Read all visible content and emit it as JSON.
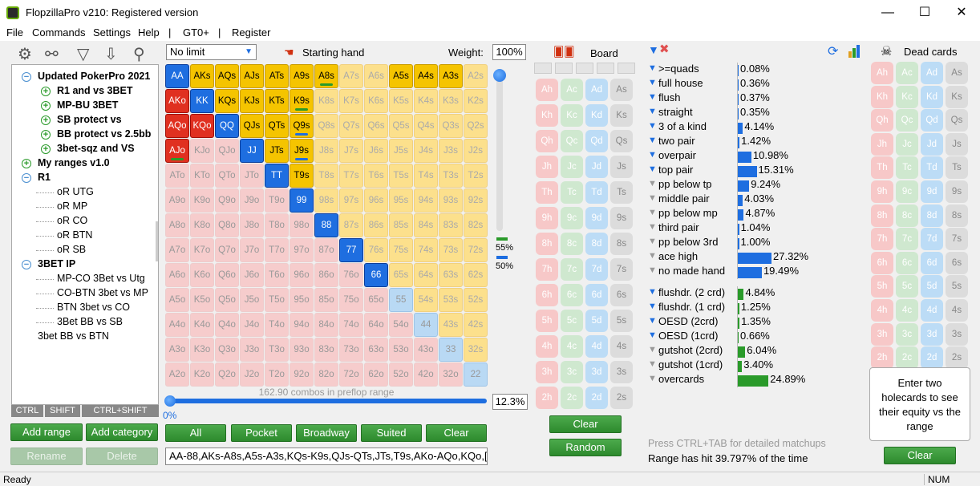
{
  "window": {
    "title": "FlopzillaPro v210: Registered version"
  },
  "menu": [
    "File",
    "Commands",
    "Settings",
    "Help",
    "|",
    "GT0+",
    "|",
    "Register"
  ],
  "tree": [
    {
      "label": "Updated PokerPro 2021",
      "bold": true,
      "toggle": "minus",
      "level": 1
    },
    {
      "label": "R1 and vs 3BET",
      "bold": true,
      "toggle": "plus",
      "level": 2
    },
    {
      "label": "MP-BU 3BET",
      "bold": true,
      "toggle": "plus",
      "level": 2
    },
    {
      "label": "SB protect vs",
      "bold": true,
      "toggle": "plus",
      "level": 2
    },
    {
      "label": "BB protect vs 2.5bb",
      "bold": true,
      "toggle": "plus",
      "level": 2
    },
    {
      "label": "3bet-sqz and VS",
      "bold": true,
      "toggle": "plus",
      "level": 2
    },
    {
      "label": "My ranges v1.0",
      "bold": true,
      "toggle": "plus",
      "level": 1
    },
    {
      "label": "R1",
      "bold": true,
      "toggle": "minus",
      "level": 1
    },
    {
      "label": "oR UTG",
      "bold": false,
      "toggle": "",
      "level": 3
    },
    {
      "label": "oR MP",
      "bold": false,
      "toggle": "",
      "level": 3
    },
    {
      "label": "oR CO",
      "bold": false,
      "toggle": "",
      "level": 3
    },
    {
      "label": "oR BTN",
      "bold": false,
      "toggle": "",
      "level": 3
    },
    {
      "label": "oR SB",
      "bold": false,
      "toggle": "",
      "level": 3
    },
    {
      "label": "3BET IP",
      "bold": true,
      "toggle": "minus",
      "level": 1
    },
    {
      "label": "MP-CO 3Bet vs Utg",
      "bold": false,
      "toggle": "",
      "level": 3
    },
    {
      "label": "CO-BTN 3bet vs MP",
      "bold": false,
      "toggle": "",
      "level": 3
    },
    {
      "label": "BTN 3bet vs CO",
      "bold": false,
      "toggle": "",
      "level": 3
    },
    {
      "label": "3Bet BB vs SB",
      "bold": false,
      "toggle": "",
      "level": 3
    },
    {
      "label": "3bet BB vs BTN",
      "bold": false,
      "toggle": "",
      "level": 0
    }
  ],
  "keys": [
    "CTRL",
    "SHIFT",
    "CTRL+SHIFT"
  ],
  "left_buttons": {
    "add_range": "Add range",
    "add_category": "Add category",
    "rename": "Rename",
    "delete": "Delete"
  },
  "range": {
    "limit_select": "No limit",
    "starting_hand_label": "Starting hand",
    "weight_label": "Weight:",
    "weight_value": "100%",
    "combos_text": "162.90 combos in preflop range",
    "slider_left": "0%",
    "slider_right": "12.3%",
    "vslider_top": "55%",
    "vslider_bottom": "50%",
    "range_text": "AA-88,AKs-A8s,A5s-A3s,KQs-K9s,QJs-QTs,JTs,T9s,AKo-AQo,KQo,[...",
    "buttons": [
      "All",
      "Pocket",
      "Broadway",
      "Suited",
      "Clear"
    ]
  },
  "grid": [
    [
      "AA:blue",
      "AKs:yel",
      "AQs:yel",
      "AJs:yel",
      "ATs:yel",
      "A9s:yel",
      "A8s:yel",
      "A7s:orange",
      "A6s:orange",
      "A5s:yel",
      "A4s:yel",
      "A3s:yel",
      "A2s:orange"
    ],
    [
      "AKo:red",
      "KK:blue",
      "KQs:yel",
      "KJs:yel",
      "KTs:yel",
      "K9s:yel",
      "K8s:orange",
      "K7s:orange",
      "K6s:orange",
      "K5s:orange",
      "K4s:orange",
      "K3s:orange",
      "K2s:orange"
    ],
    [
      "AQo:red",
      "KQo:red",
      "QQ:blue",
      "QJs:yel",
      "QTs:yel",
      "Q9s:yel",
      "Q8s:orange",
      "Q7s:orange",
      "Q6s:orange",
      "Q5s:orange",
      "Q4s:orange",
      "Q3s:orange",
      "Q2s:orange"
    ],
    [
      "AJo:red",
      "KJo:pink",
      "QJo:pink",
      "JJ:blue",
      "JTs:yel",
      "J9s:yel",
      "J8s:orange",
      "J7s:orange",
      "J6s:orange",
      "J5s:orange",
      "J4s:orange",
      "J3s:orange",
      "J2s:orange"
    ],
    [
      "ATo:pink",
      "KTo:pink",
      "QTo:pink",
      "JTo:pink",
      "TT:blue",
      "T9s:yel",
      "T8s:orange",
      "T7s:orange",
      "T6s:orange",
      "T5s:orange",
      "T4s:orange",
      "T3s:orange",
      "T2s:orange"
    ],
    [
      "A9o:pink",
      "K9o:pink",
      "Q9o:pink",
      "J9o:pink",
      "T9o:pink",
      "99:blue",
      "98s:orange",
      "97s:orange",
      "96s:orange",
      "95s:orange",
      "94s:orange",
      "93s:orange",
      "92s:orange"
    ],
    [
      "A8o:pink",
      "K8o:pink",
      "Q8o:pink",
      "J8o:pink",
      "T8o:pink",
      "98o:pink",
      "88:blue",
      "87s:orange",
      "86s:orange",
      "85s:orange",
      "84s:orange",
      "83s:orange",
      "82s:orange"
    ],
    [
      "A7o:pink",
      "K7o:pink",
      "Q7o:pink",
      "J7o:pink",
      "T7o:pink",
      "97o:pink",
      "87o:pink",
      "77:blue",
      "76s:orange",
      "75s:orange",
      "74s:orange",
      "73s:orange",
      "72s:orange"
    ],
    [
      "A6o:pink",
      "K6o:pink",
      "Q6o:pink",
      "J6o:pink",
      "T6o:pink",
      "96o:pink",
      "86o:pink",
      "76o:pink",
      "66:blue",
      "65s:orange",
      "64s:orange",
      "63s:orange",
      "62s:orange"
    ],
    [
      "A5o:pink",
      "K5o:pink",
      "Q5o:pink",
      "J5o:pink",
      "T5o:pink",
      "95o:pink",
      "85o:pink",
      "75o:pink",
      "65o:pink",
      "55:lblue",
      "54s:orange",
      "53s:orange",
      "52s:orange"
    ],
    [
      "A4o:pink",
      "K4o:pink",
      "Q4o:pink",
      "J4o:pink",
      "T4o:pink",
      "94o:pink",
      "84o:pink",
      "74o:pink",
      "64o:pink",
      "54o:pink",
      "44:lblue",
      "43s:orange",
      "42s:orange"
    ],
    [
      "A3o:pink",
      "K3o:pink",
      "Q3o:pink",
      "J3o:pink",
      "T3o:pink",
      "93o:pink",
      "83o:pink",
      "73o:pink",
      "63o:pink",
      "53o:pink",
      "43o:pink",
      "33:lblue",
      "32s:orange"
    ],
    [
      "A2o:pink",
      "K2o:pink",
      "Q2o:pink",
      "J2o:pink",
      "T2o:pink",
      "92o:pink",
      "82o:pink",
      "72o:pink",
      "62o:pink",
      "52o:pink",
      "42o:pink",
      "32o:pink",
      "22:lblue"
    ]
  ],
  "board": {
    "label": "Board",
    "ranks": [
      "A",
      "K",
      "Q",
      "J",
      "T",
      "9",
      "8",
      "7",
      "6",
      "5",
      "4",
      "3",
      "2"
    ],
    "suits": [
      "h",
      "c",
      "d",
      "s"
    ],
    "buttons": {
      "clear": "Clear",
      "random": "Random"
    }
  },
  "stats": {
    "made": [
      {
        "label": ">=quads",
        "pct": "0.08%",
        "value": 0.08,
        "active": true
      },
      {
        "label": "full house",
        "pct": "0.36%",
        "value": 0.36,
        "active": true
      },
      {
        "label": "flush",
        "pct": "0.37%",
        "value": 0.37,
        "active": true
      },
      {
        "label": "straight",
        "pct": "0.35%",
        "value": 0.35,
        "active": true
      },
      {
        "label": "3 of a kind",
        "pct": "4.14%",
        "value": 4.14,
        "active": true
      },
      {
        "label": "two pair",
        "pct": "1.42%",
        "value": 1.42,
        "active": true
      },
      {
        "label": "overpair",
        "pct": "10.98%",
        "value": 10.98,
        "active": true
      },
      {
        "label": "top pair",
        "pct": "15.31%",
        "value": 15.31,
        "active": true
      },
      {
        "label": "pp below tp",
        "pct": "9.24%",
        "value": 9.24,
        "active": false
      },
      {
        "label": "middle pair",
        "pct": "4.03%",
        "value": 4.03,
        "active": false
      },
      {
        "label": "pp below mp",
        "pct": "4.87%",
        "value": 4.87,
        "active": false
      },
      {
        "label": "third pair",
        "pct": "1.04%",
        "value": 1.04,
        "active": false
      },
      {
        "label": "pp below 3rd",
        "pct": "1.00%",
        "value": 1.0,
        "active": false
      },
      {
        "label": "ace high",
        "pct": "27.32%",
        "value": 27.32,
        "active": false
      },
      {
        "label": "no made hand",
        "pct": "19.49%",
        "value": 19.49,
        "active": false
      }
    ],
    "draws": [
      {
        "label": "flushdr. (2 crd)",
        "pct": "4.84%",
        "value": 4.84,
        "active": true
      },
      {
        "label": "flushdr. (1 crd)",
        "pct": "1.25%",
        "value": 1.25,
        "active": true
      },
      {
        "label": "OESD (2crd)",
        "pct": "1.35%",
        "value": 1.35,
        "active": true
      },
      {
        "label": "OESD (1crd)",
        "pct": "0.66%",
        "value": 0.66,
        "active": true
      },
      {
        "label": "gutshot (2crd)",
        "pct": "6.04%",
        "value": 6.04,
        "active": false
      },
      {
        "label": "gutshot (1crd)",
        "pct": "3.40%",
        "value": 3.4,
        "active": false
      },
      {
        "label": "overcards",
        "pct": "24.89%",
        "value": 24.89,
        "active": false
      }
    ],
    "hint": "Press CTRL+TAB for detailed matchups",
    "hit": "Range has hit 39.797% of the time"
  },
  "dead": {
    "label": "Dead cards",
    "info": "Enter two holecards to see their equity vs the range",
    "clear": "Clear"
  },
  "status": {
    "left": "Ready",
    "right": "NUM"
  },
  "colors": {
    "blue_bar": "#1e6ee0",
    "green_bar": "#2a9a2a",
    "button_green": "#2d8a2d"
  }
}
